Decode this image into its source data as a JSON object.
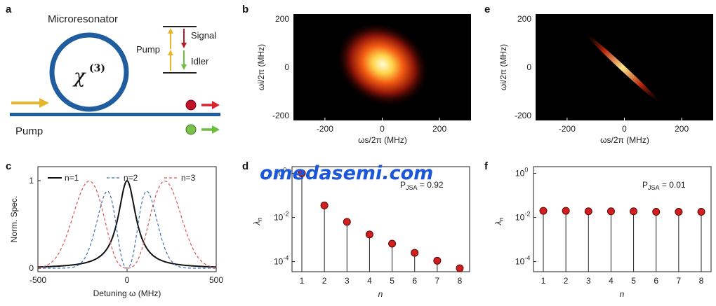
{
  "watermark": "omedasemi.com",
  "panels": {
    "a": {
      "letter": "a",
      "microresonator_label": "Microresonator",
      "chi_symbol": "χ",
      "chi_order": "(3)",
      "pump_label": "Pump",
      "level_pump": "Pump",
      "level_signal": "Signal",
      "level_idler": "Idler",
      "colors": {
        "pump": "#e8b62c",
        "signal": "#d9262e",
        "idler": "#6cbf3a",
        "waveguide": "#1f5d9e"
      }
    },
    "b": {
      "letter": "b",
      "xlabel": "ωs/2π (MHz)",
      "ylabel": "ωi/2π (MHz)"
    },
    "e": {
      "letter": "e",
      "xlabel": "ωs/2π (MHz)",
      "ylabel": "ωi/2π (MHz)"
    },
    "c": {
      "letter": "c",
      "xlabel": "Detuning ω (MHz)",
      "ylabel": "Norm. Spec."
    },
    "d": {
      "letter": "d",
      "xlabel": "n",
      "ylabel_symbol": "λ",
      "ylabel_sub": "n",
      "purity_symbol": "P",
      "purity_sub": "JSA",
      "purity_value": " = 0.92"
    },
    "f": {
      "letter": "f",
      "xlabel": "n",
      "ylabel_symbol": "λ",
      "ylabel_sub": "n",
      "purity_symbol": "P",
      "purity_sub": "JSA",
      "purity_value": " = 0.01"
    }
  },
  "chart_data": [
    {
      "panel": "b",
      "type": "heatmap",
      "xlabel": "ωs/2π (MHz)",
      "ylabel": "ωi/2π (MHz)",
      "xlim": [
        -310,
        310
      ],
      "ylim": [
        -220,
        220
      ],
      "xticks": [
        -200,
        0,
        200
      ],
      "yticks": [
        -200,
        0,
        200
      ],
      "peak_center": [
        0,
        0
      ],
      "colormap": "hot"
    },
    {
      "panel": "e",
      "type": "heatmap",
      "xlabel": "ωs/2π (MHz)",
      "ylabel": "ωi/2π (MHz)",
      "xlim": [
        -310,
        310
      ],
      "ylim": [
        -220,
        220
      ],
      "xticks": [
        -200,
        0,
        200
      ],
      "yticks": [
        -200,
        0,
        200
      ],
      "peak_center": [
        0,
        0
      ],
      "colormap": "hot"
    },
    {
      "panel": "c",
      "type": "line",
      "xlabel": "Detuning ω (MHz)",
      "ylabel": "Norm. Spec.",
      "xlim": [
        -500,
        500
      ],
      "ylim": [
        -0.04,
        1.16
      ],
      "xticks": [
        -500,
        0,
        500
      ],
      "yticks": [
        0,
        1
      ],
      "legend_position": "top",
      "series": [
        {
          "name": "n=1",
          "color": "#111111",
          "style": "solid",
          "peaks": [
            0
          ],
          "width": 60
        },
        {
          "name": "n=2",
          "color": "#3d6fb3",
          "style": "dashed",
          "peaks": [
            -90,
            90
          ],
          "width": 100
        },
        {
          "name": "n=3",
          "color": "#d9534f",
          "style": "dashed",
          "peaks": [
            -210,
            210
          ],
          "width": 130
        }
      ]
    },
    {
      "panel": "d",
      "type": "scatter",
      "xlabel": "n",
      "ylabel": "λn",
      "yscale": "log",
      "ylim": [
        3.5e-05,
        2
      ],
      "yticks": [
        "10^0",
        "10^-2",
        "10^-4"
      ],
      "x": [
        1,
        2,
        3,
        4,
        5,
        6,
        7,
        8
      ],
      "values": [
        1,
        0.035,
        0.0063,
        0.0017,
        0.00065,
        0.00025,
        0.00011,
        5e-05
      ],
      "annotation": "PJSA = 0.92"
    },
    {
      "panel": "f",
      "type": "scatter",
      "xlabel": "n",
      "ylabel": "λn",
      "yscale": "log",
      "ylim": [
        3.5e-05,
        2
      ],
      "yticks": [
        "10^0",
        "10^-2",
        "10^-4"
      ],
      "x": [
        1,
        2,
        3,
        4,
        5,
        6,
        7,
        8
      ],
      "values": [
        0.02,
        0.02,
        0.019,
        0.019,
        0.019,
        0.018,
        0.018,
        0.018
      ],
      "annotation": "PJSA = 0.01"
    }
  ]
}
